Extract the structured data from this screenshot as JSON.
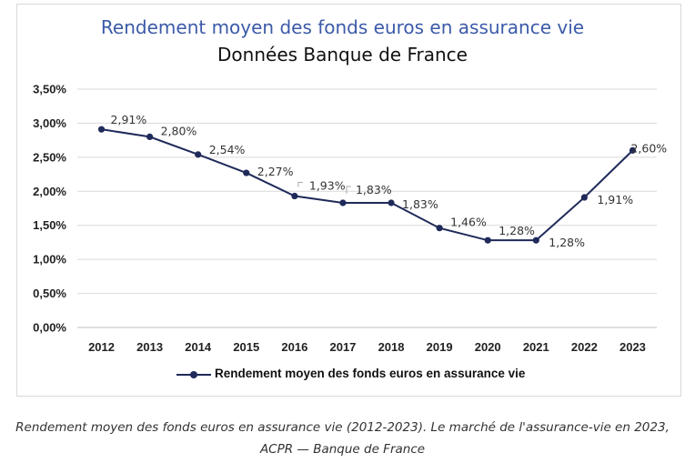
{
  "chart_data": {
    "type": "line",
    "title": "Rendement moyen des fonds euros en assurance vie",
    "subtitle": "Données Banque de France",
    "categories": [
      "2012",
      "2013",
      "2014",
      "2015",
      "2016",
      "2017",
      "2018",
      "2019",
      "2020",
      "2021",
      "2022",
      "2023"
    ],
    "series": [
      {
        "name": "Rendement moyen des fonds euros en assurance vie",
        "values": [
          2.91,
          2.8,
          2.54,
          2.27,
          1.93,
          1.83,
          1.83,
          1.46,
          1.28,
          1.28,
          1.91,
          2.6
        ],
        "labels": [
          "2,91%",
          "2,80%",
          "2,54%",
          "2,27%",
          "1,93%",
          "1,83%",
          "1,83%",
          "1,46%",
          "1,28%",
          "1,28%",
          "1,91%",
          "2,60%"
        ],
        "color": "#1f2a5a"
      }
    ],
    "yticks": [
      0,
      0.5,
      1.0,
      1.5,
      2.0,
      2.5,
      3.0,
      3.5
    ],
    "ytick_labels": [
      "0,00%",
      "0,50%",
      "1,00%",
      "1,50%",
      "2,00%",
      "2,50%",
      "3,00%",
      "3,50%"
    ],
    "ylim": [
      0,
      3.5
    ],
    "grid": true,
    "legend_position": "bottom"
  },
  "caption": "Rendement moyen des fonds euros en assurance vie (2012-2023). Le marché de l'assurance-vie en 2023, ACPR — Banque de France",
  "colors": {
    "title": "#3b5aa8",
    "line": "#1f2a5a",
    "grid": "#d9d9d9"
  }
}
